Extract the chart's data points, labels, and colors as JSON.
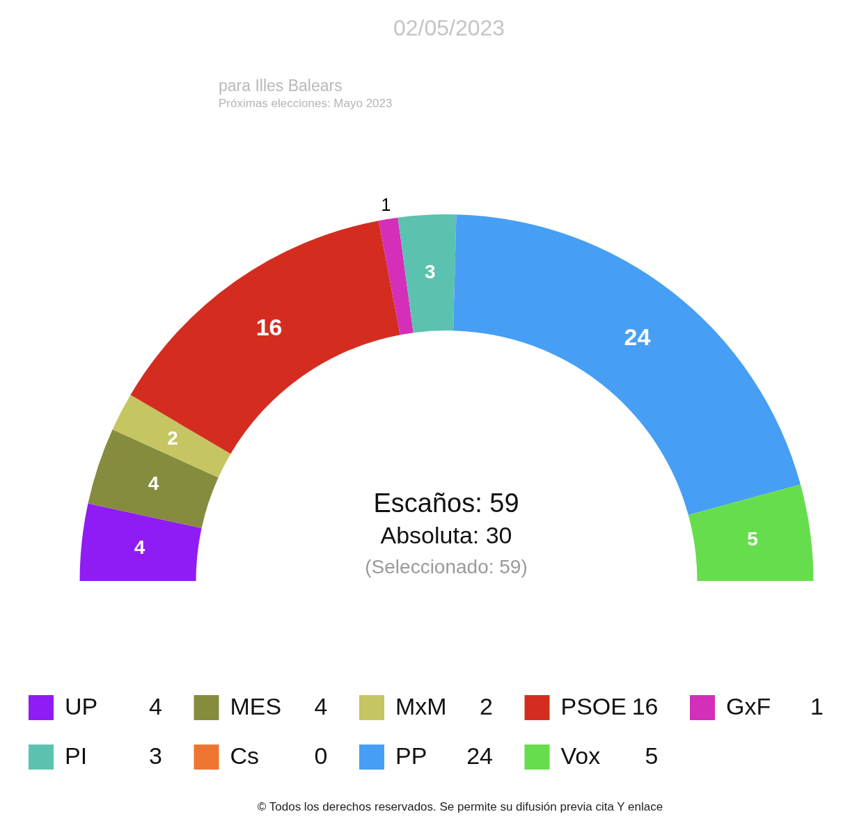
{
  "chart_data": {
    "type": "donut",
    "title": "02/05/2023",
    "subtitle": "para Illes Balears",
    "categories": [
      "UP",
      "MES",
      "MxM",
      "PSOE",
      "GxF",
      "PI",
      "Cs",
      "PP",
      "Vox"
    ],
    "values": [
      4,
      4,
      2,
      16,
      1,
      3,
      0,
      24,
      5
    ],
    "value_labels": [
      "4",
      "4",
      "2",
      "16",
      "1",
      "3",
      "0",
      "24",
      "5"
    ],
    "colors": [
      "#8f1cf5",
      "#858c3e",
      "#c5c562",
      "#d42d20",
      "#d42fb8",
      "#5cc2b0",
      "#ef7532",
      "#479ef5",
      "#66dd4c"
    ],
    "legend": "bottom",
    "annotations": [
      "Próximas elecciones: Mayo 2023",
      "Escaños: 59",
      "Absoluta: 30",
      "(Seleccionado: 59)",
      "© Todos los derechos reservados. Se permite su difusión previa cita Y enlace"
    ]
  }
}
